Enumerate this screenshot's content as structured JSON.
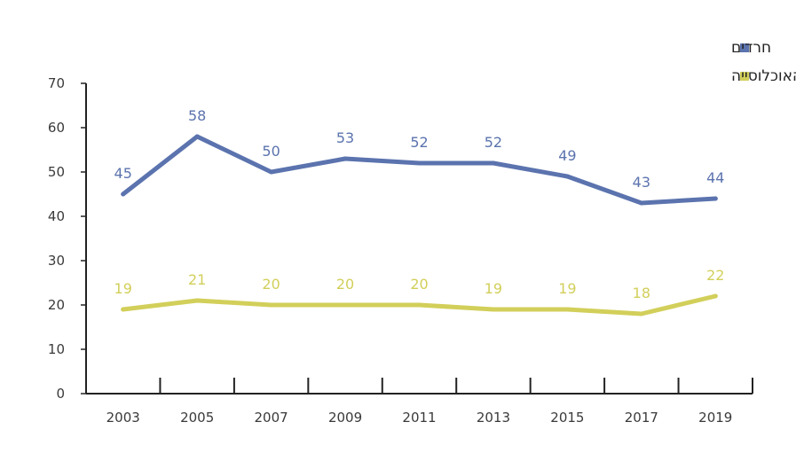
{
  "chart_data": {
    "type": "line",
    "x": [
      "2003",
      "2005",
      "2007",
      "2009",
      "2011",
      "2013",
      "2015",
      "2017",
      "2019"
    ],
    "series": [
      {
        "name": "חרדים",
        "color": "#5b73ae",
        "values": [
          45,
          58,
          50,
          53,
          52,
          52,
          49,
          43,
          44
        ],
        "labels": [
          "45",
          "58",
          "50",
          "53",
          "52",
          "52",
          "49",
          "43",
          "44"
        ]
      },
      {
        "name": "כלל האוכלוסייה",
        "color": "#d2cf5a",
        "values": [
          19,
          21,
          20,
          20,
          20,
          19,
          19,
          18,
          22
        ],
        "labels": [
          "19",
          "21",
          "20",
          "20",
          "20",
          "19",
          "19",
          "18",
          "22"
        ]
      }
    ],
    "yticks": [
      "0",
      "10",
      "20",
      "30",
      "40",
      "50",
      "60",
      "70"
    ],
    "ylim": [
      0,
      70
    ],
    "grid": false,
    "legend": "top-right"
  }
}
